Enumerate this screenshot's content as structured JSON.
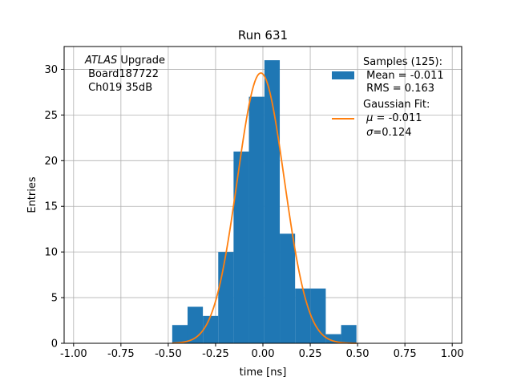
{
  "chart_data": {
    "type": "bar",
    "title": "Run 631",
    "xlabel": "time [ns]",
    "ylabel": "Entries",
    "xlim": [
      -1.05,
      1.05
    ],
    "ylim": [
      0,
      32.5
    ],
    "grid": true,
    "legend_placement": "top-right",
    "xticks": [
      "-1.00",
      "-0.75",
      "-0.50",
      "-0.25",
      "0.00",
      "0.25",
      "0.50",
      "0.75",
      "1.00"
    ],
    "xtick_values": [
      -1.0,
      -0.75,
      -0.5,
      -0.25,
      0.0,
      0.25,
      0.5,
      0.75,
      1.0
    ],
    "yticks": [
      "0",
      "5",
      "10",
      "15",
      "20",
      "25",
      "30"
    ],
    "ytick_values": [
      0,
      5,
      10,
      15,
      20,
      25,
      30
    ],
    "histogram": {
      "bin_edges": [
        -0.479,
        -0.398,
        -0.317,
        -0.236,
        -0.155,
        -0.074,
        0.008,
        0.089,
        0.17,
        0.251,
        0.332,
        0.413,
        0.494
      ],
      "counts": [
        2,
        4,
        3,
        10,
        21,
        27,
        31,
        12,
        6,
        6,
        1,
        2
      ],
      "color": "#1f77b4"
    },
    "gaussian_fit": {
      "mu": -0.011,
      "sigma": 0.124,
      "amplitude": 29.6,
      "color": "#ff7f0e"
    },
    "annotation": {
      "italic": "ATLAS",
      "upright": " Upgrade",
      "line2": " Board187722",
      "line3": " Ch019 35dB"
    },
    "legend": {
      "samples_line1": "Samples (125):",
      "samples_line2": " Mean = -0.011",
      "samples_line3": " RMS = 0.163",
      "fit_line1": "Gaussian Fit:",
      "fit_mu_symbol": "μ",
      "fit_mu_value": " = -0.011",
      "fit_sigma_symbol": "σ",
      "fit_sigma_value": "=0.124"
    }
  }
}
